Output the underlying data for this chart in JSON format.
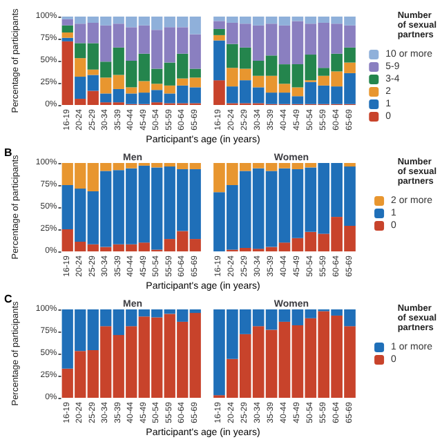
{
  "chart_data": [
    {
      "type": "bar",
      "stacked": true,
      "ylabel": "Percentage of participants",
      "xlabel": "Participant's age (in years)",
      "categories": [
        "16-19",
        "20-24",
        "25-29",
        "30-34",
        "35-39",
        "40-44",
        "45-49",
        "50-54",
        "55-59",
        "60-64",
        "65-69"
      ],
      "ylim": [
        0,
        100
      ],
      "yticks": [
        {
          "value": 0,
          "label": "0%"
        },
        {
          "value": 25,
          "label": "25%"
        },
        {
          "value": 50,
          "label": "50%"
        },
        {
          "value": 75,
          "label": "75%"
        },
        {
          "value": 100,
          "label": "100%"
        }
      ],
      "legend": false,
      "series": [
        {
          "color": "#c8432b",
          "values": [
            72,
            7,
            16,
            3,
            3,
            1,
            1,
            3,
            2,
            2,
            2
          ]
        },
        {
          "color": "#1f6fb8",
          "values": [
            4,
            25,
            18,
            10,
            15,
            12,
            13,
            14,
            11,
            20,
            18
          ]
        },
        {
          "color": "#e8962f",
          "values": [
            6,
            21,
            6,
            18,
            16,
            7,
            13,
            7,
            9,
            8,
            11
          ]
        },
        {
          "color": "#24854d",
          "values": [
            8,
            17,
            30,
            18,
            31,
            30,
            31,
            17,
            26,
            28,
            10
          ]
        },
        {
          "color": "#8a7fc0",
          "values": [
            7,
            22,
            23,
            41,
            27,
            38,
            32,
            44,
            40,
            30,
            39
          ]
        },
        {
          "color": "#8fb0da",
          "values": [
            3,
            8,
            7,
            10,
            8,
            12,
            10,
            15,
            12,
            12,
            20
          ]
        }
      ]
    },
    {
      "type": "bar",
      "stacked": true,
      "categories": [
        "16-19",
        "20-24",
        "25-29",
        "30-34",
        "35-39",
        "40-44",
        "45-49",
        "50-54",
        "55-59",
        "60-64",
        "65-69"
      ],
      "ylim": [
        0,
        100
      ],
      "tick_labels": "x",
      "legend": "right",
      "legend_title": "Number of sexual partners",
      "series": [
        {
          "name": "0",
          "color": "#c8432b",
          "values": [
            28,
            2,
            2,
            2,
            1,
            1,
            1,
            1,
            1,
            1,
            1
          ]
        },
        {
          "name": "1",
          "color": "#1f6fb8",
          "values": [
            45,
            19,
            26,
            18,
            13,
            13,
            9,
            25,
            21,
            20,
            35
          ]
        },
        {
          "name": "2",
          "color": "#e8962f",
          "values": [
            6,
            21,
            13,
            13,
            19,
            10,
            10,
            2,
            11,
            17,
            12
          ]
        },
        {
          "name": "3-4",
          "color": "#24854d",
          "values": [
            7,
            27,
            24,
            17,
            23,
            22,
            26,
            29,
            9,
            20,
            17
          ]
        },
        {
          "name": "5-9",
          "color": "#8a7fc0",
          "values": [
            9,
            24,
            27,
            40,
            36,
            44,
            49,
            35,
            51,
            34,
            25
          ]
        },
        {
          "name": "10 or more",
          "color": "#8fb0da",
          "values": [
            5,
            7,
            8,
            10,
            8,
            10,
            5,
            8,
            7,
            8,
            10
          ]
        }
      ]
    },
    {
      "type": "bar",
      "stacked": true,
      "title": "Men",
      "annotations": [
        "B"
      ],
      "ylabel": "Percentage of participants",
      "xlabel": "Participant's age (in years)",
      "categories": [
        "16-19",
        "20-24",
        "25-29",
        "30-34",
        "35-39",
        "40-44",
        "45-49",
        "50-54",
        "55-59",
        "60-64",
        "65-69"
      ],
      "ylim": [
        0,
        100
      ],
      "yticks": [
        {
          "value": 0,
          "label": "0%"
        },
        {
          "value": 25,
          "label": "25%"
        },
        {
          "value": 50,
          "label": "50%"
        },
        {
          "value": 75,
          "label": "75%"
        },
        {
          "value": 100,
          "label": "100%"
        }
      ],
      "legend": false,
      "series": [
        {
          "color": "#c8432b",
          "values": [
            25,
            11,
            8,
            5,
            8,
            8,
            10,
            2,
            14,
            23,
            14
          ]
        },
        {
          "color": "#1f6fb8",
          "values": [
            50,
            60,
            60,
            86,
            84,
            86,
            87,
            93,
            82,
            70,
            79
          ]
        },
        {
          "color": "#e8962f",
          "values": [
            25,
            29,
            32,
            9,
            8,
            6,
            3,
            5,
            4,
            7,
            7
          ]
        }
      ]
    },
    {
      "type": "bar",
      "stacked": true,
      "title": "Women",
      "categories": [
        "16-19",
        "20-24",
        "25-29",
        "30-34",
        "35-39",
        "40-44",
        "45-49",
        "50-54",
        "55-59",
        "60-64",
        "65-69"
      ],
      "ylim": [
        0,
        100
      ],
      "tick_labels": "x",
      "legend": "right",
      "legend_title": "Number of sexual partners",
      "series": [
        {
          "name": "0",
          "color": "#c8432b",
          "values": [
            0,
            2,
            4,
            3,
            5,
            10,
            15,
            22,
            20,
            39,
            29
          ]
        },
        {
          "name": "1",
          "color": "#1f6fb8",
          "values": [
            67,
            73,
            87,
            91,
            86,
            84,
            78,
            73,
            80,
            61,
            67
          ]
        },
        {
          "name": "2 or more",
          "color": "#e8962f",
          "values": [
            33,
            25,
            9,
            6,
            9,
            6,
            7,
            5,
            0,
            0,
            4
          ]
        }
      ]
    },
    {
      "type": "bar",
      "stacked": true,
      "title": "Men",
      "annotations": [
        "C"
      ],
      "ylabel": "Percentage of participants",
      "xlabel": "Participant's age (in years)",
      "categories": [
        "16-19",
        "20-24",
        "25-29",
        "30-34",
        "35-39",
        "40-44",
        "45-49",
        "50-54",
        "55-59",
        "60-64",
        "65-69"
      ],
      "ylim": [
        0,
        100
      ],
      "yticks": [
        {
          "value": 0,
          "label": "0%"
        },
        {
          "value": 25,
          "label": "25%"
        },
        {
          "value": 50,
          "label": "50%"
        },
        {
          "value": 75,
          "label": "75%"
        },
        {
          "value": 100,
          "label": "100%"
        }
      ],
      "legend": false,
      "series": [
        {
          "color": "#c8432b",
          "values": [
            33,
            53,
            54,
            81,
            71,
            81,
            92,
            91,
            95,
            86,
            96
          ]
        },
        {
          "color": "#1f6fb8",
          "values": [
            67,
            47,
            46,
            19,
            29,
            19,
            8,
            9,
            5,
            14,
            4
          ]
        }
      ]
    },
    {
      "type": "bar",
      "stacked": true,
      "title": "Women",
      "categories": [
        "16-19",
        "20-24",
        "25-29",
        "30-34",
        "35-39",
        "40-44",
        "45-49",
        "50-54",
        "55-59",
        "60-64",
        "65-69"
      ],
      "ylim": [
        0,
        100
      ],
      "tick_labels": "x",
      "legend": "right",
      "legend_title": "Number of sexual partners",
      "series": [
        {
          "name": "0",
          "color": "#c8432b",
          "values": [
            3,
            44,
            72,
            81,
            77,
            86,
            82,
            90,
            98,
            93,
            81
          ]
        },
        {
          "name": "1 or more",
          "color": "#1f6fb8",
          "values": [
            97,
            56,
            28,
            19,
            23,
            14,
            18,
            10,
            2,
            7,
            19
          ]
        }
      ]
    }
  ]
}
